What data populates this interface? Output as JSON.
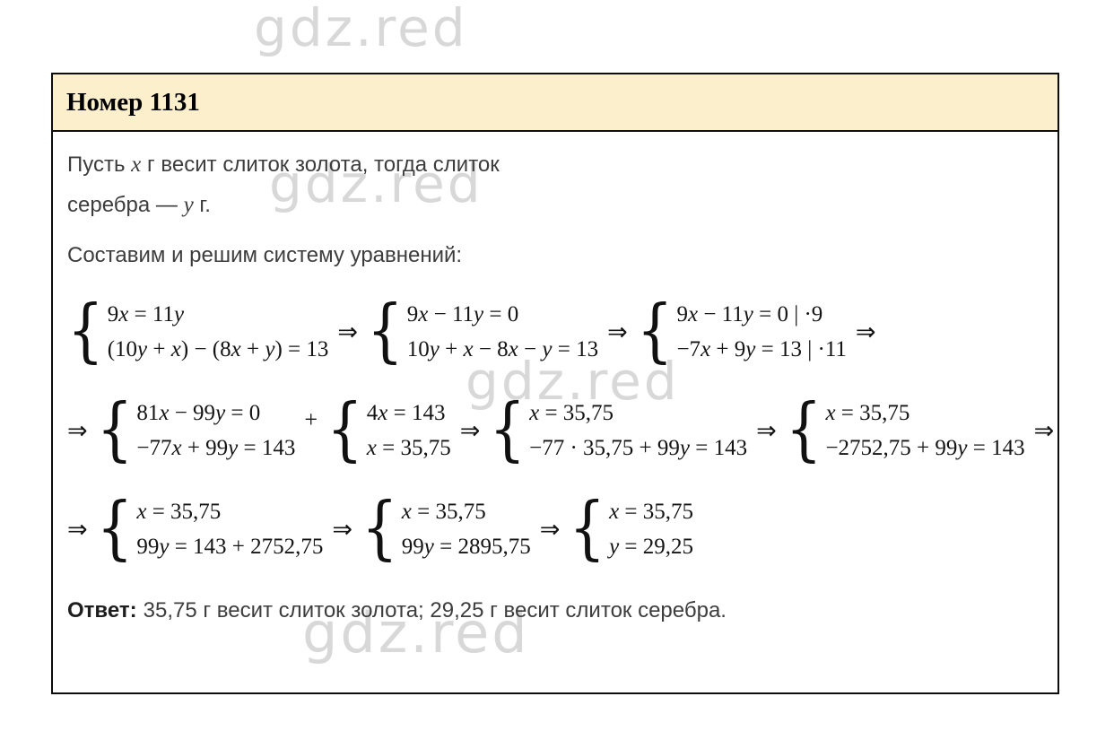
{
  "watermark": {
    "text": "gdz.red",
    "color": "#d8d8d8"
  },
  "header": {
    "title": "Номер 1131",
    "bg_color": "#fcefcc"
  },
  "intro": {
    "line1": "Пусть {x} г весит слиток золота, тогда слиток",
    "line2": "серебра — {y} г."
  },
  "setup_line": "Составим и решим систему уравнений:",
  "math_rows": [
    {
      "items": [
        {
          "type": "system",
          "lines": [
            "9{x} = 11{y}",
            "(10{y} + {x}) − (8{x} + {y}) = 13"
          ]
        },
        {
          "type": "arrow",
          "glyph": "⇒"
        },
        {
          "type": "system",
          "lines": [
            "9{x} − 11{y} = 0",
            "10{y} + {x} − 8{x} − {y} = 13"
          ]
        },
        {
          "type": "arrow",
          "glyph": "⇒"
        },
        {
          "type": "system",
          "lines": [
            "9{x} − 11{y} = 0 | ·9",
            "−7{x} + 9{y} = 13 | ·11"
          ]
        },
        {
          "type": "arrow",
          "glyph": "⇒"
        }
      ]
    },
    {
      "items": [
        {
          "type": "arrow",
          "glyph": "⇒"
        },
        {
          "type": "system",
          "lines": [
            "81{x} − 99{y} = 0",
            "−77{x} + 99{y} = 143"
          ]
        },
        {
          "type": "plus",
          "glyph": "+"
        },
        {
          "type": "system",
          "lines": [
            "4{x} = 143",
            "{x} = 35,75"
          ]
        },
        {
          "type": "arrow",
          "glyph": "⇒"
        },
        {
          "type": "system",
          "lines": [
            "{x} = 35,75",
            "−77 · 35,75 + 99{y} = 143"
          ]
        },
        {
          "type": "arrow",
          "glyph": "⇒"
        },
        {
          "type": "system",
          "lines": [
            "{x} = 35,75",
            "−2752,75 + 99{y} = 143"
          ]
        },
        {
          "type": "arrow",
          "glyph": "⇒"
        }
      ]
    },
    {
      "items": [
        {
          "type": "arrow",
          "glyph": "⇒"
        },
        {
          "type": "system",
          "lines": [
            "{x} = 35,75",
            "99{y} = 143 + 2752,75"
          ]
        },
        {
          "type": "arrow",
          "glyph": "⇒"
        },
        {
          "type": "system",
          "lines": [
            "{x} = 35,75",
            "99{y} = 2895,75"
          ]
        },
        {
          "type": "arrow",
          "glyph": "⇒"
        },
        {
          "type": "system",
          "lines": [
            "{x} = 35,75",
            "{y} = 29,25"
          ]
        }
      ]
    }
  ],
  "answer": {
    "label": "Ответ:",
    "text": "35,75 г весит слиток золота; 29,25 г весит слиток серебра."
  }
}
